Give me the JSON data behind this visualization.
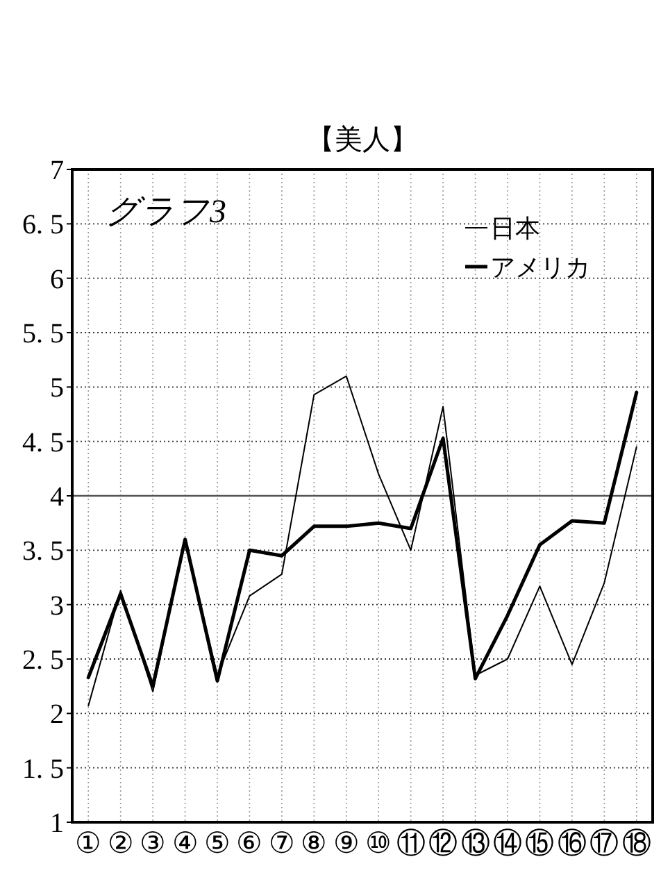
{
  "chart_data": {
    "type": "line",
    "title": "【美人】",
    "annotations": [
      "グラフ3"
    ],
    "categories": [
      "①",
      "②",
      "③",
      "④",
      "⑤",
      "⑥",
      "⑦",
      "⑧",
      "⑨",
      "⑩",
      "⑪",
      "⑫",
      "⑬",
      "⑭",
      "⑮",
      "⑯",
      "⑰",
      "⑱"
    ],
    "series": [
      {
        "name": "日本",
        "color": "#000000",
        "values": [
          2.07,
          3.13,
          2.2,
          3.6,
          2.35,
          3.08,
          3.28,
          4.93,
          5.1,
          4.2,
          3.5,
          4.82,
          2.35,
          2.5,
          3.17,
          2.45,
          3.2,
          4.45
        ]
      },
      {
        "name": "アメリカ",
        "color": "#000000",
        "values": [
          2.33,
          3.1,
          2.25,
          3.6,
          2.3,
          3.5,
          3.45,
          3.72,
          3.72,
          3.75,
          3.7,
          4.53,
          2.32,
          2.9,
          3.55,
          3.77,
          3.75,
          4.95
        ]
      }
    ],
    "ylim": [
      1,
      7
    ],
    "yticks": [
      1,
      {
        "value": 1.5,
        "label": "1. 5"
      },
      2,
      {
        "value": 2.5,
        "label": "2. 5"
      },
      3,
      {
        "value": 3.5,
        "label": "3. 5"
      },
      4,
      {
        "value": 4.5,
        "label": "4. 5"
      },
      5,
      {
        "value": 5.5,
        "label": "5. 5"
      },
      6,
      {
        "value": 6.5,
        "label": "6. 5"
      },
      7
    ],
    "grid": true,
    "legend": "top right",
    "marker": "none",
    "line_style": "solid",
    "ref_lines": [
      {
        "axis": "y",
        "value": 4,
        "color": "#555555",
        "line_style": "solid"
      }
    ]
  }
}
